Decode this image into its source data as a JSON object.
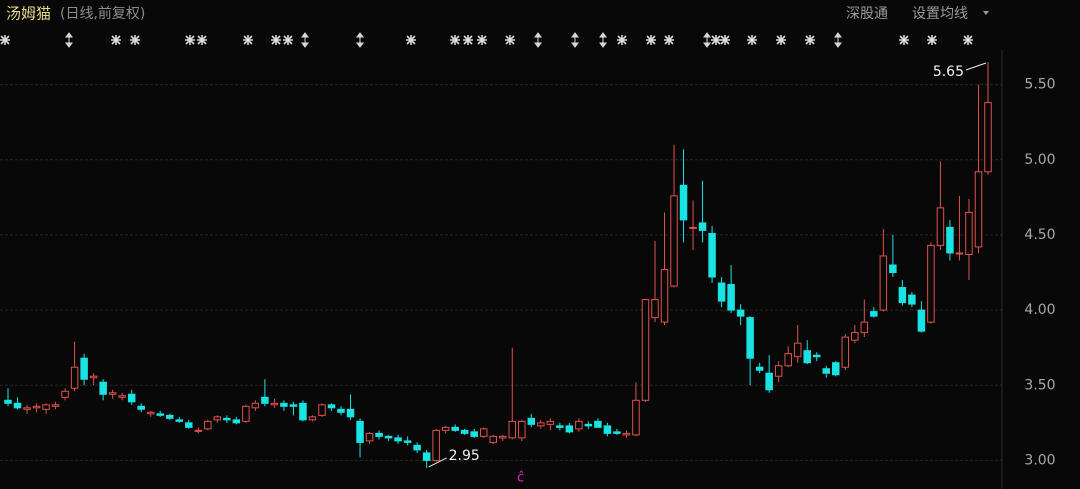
{
  "header": {
    "title": "汤姆猫",
    "subtitle": "(日线,前复权)",
    "buttons": [
      "深股通",
      "设置均线"
    ]
  },
  "chart_data": {
    "type": "candlestick",
    "up_color": "#e0524c",
    "down_color": "#19e3e3",
    "ylim": [
      2.81,
      5.73
    ],
    "yticks": [
      {
        "value": 3.0,
        "label": "3.00"
      },
      {
        "value": 3.5,
        "label": "3.50"
      },
      {
        "value": 4.0,
        "label": "4.00"
      },
      {
        "value": 4.5,
        "label": "4.50"
      },
      {
        "value": 5.0,
        "label": "5.00"
      },
      {
        "value": 5.5,
        "label": "5.50"
      }
    ],
    "grid": true,
    "open": [
      3.4,
      3.38,
      3.34,
      3.35,
      3.34,
      3.36,
      3.42,
      3.48,
      3.68,
      3.55,
      3.52,
      3.44,
      3.42,
      3.44,
      3.36,
      3.31,
      3.31,
      3.3,
      3.27,
      3.25,
      3.2,
      3.21,
      3.27,
      3.28,
      3.27,
      3.26,
      3.35,
      3.42,
      3.37,
      3.38,
      3.37,
      3.38,
      3.27,
      3.3,
      3.37,
      3.34,
      3.34,
      3.26,
      3.13,
      3.18,
      3.16,
      3.15,
      3.13,
      3.1,
      3.05,
      3.0,
      3.2,
      3.22,
      3.2,
      3.19,
      3.16,
      3.12,
      3.15,
      3.15,
      3.15,
      3.28,
      3.23,
      3.24,
      3.23,
      3.23,
      3.21,
      3.24,
      3.26,
      3.23,
      3.19,
      3.17,
      3.17,
      3.4,
      3.95,
      3.92,
      4.16,
      4.83,
      4.55,
      4.58,
      4.51,
      4.18,
      4.17,
      4.0,
      3.95,
      3.62,
      3.58,
      3.56,
      3.63,
      3.69,
      3.73,
      3.7,
      3.61,
      3.65,
      3.62,
      3.8,
      3.85,
      3.99,
      4.0,
      4.3,
      4.15,
      4.1,
      4.0,
      3.92,
      4.43,
      4.55,
      4.38,
      4.37,
      4.42,
      4.92
    ],
    "high": [
      3.48,
      3.42,
      3.37,
      3.38,
      3.38,
      3.39,
      3.48,
      3.79,
      3.71,
      3.58,
      3.54,
      3.47,
      3.45,
      3.47,
      3.38,
      3.33,
      3.33,
      3.31,
      3.29,
      3.27,
      3.22,
      3.27,
      3.3,
      3.3,
      3.29,
      3.37,
      3.4,
      3.54,
      3.41,
      3.4,
      3.39,
      3.4,
      3.3,
      3.38,
      3.38,
      3.36,
      3.44,
      3.28,
      3.19,
      3.2,
      3.17,
      3.17,
      3.16,
      3.12,
      3.07,
      3.21,
      3.23,
      3.24,
      3.21,
      3.21,
      3.22,
      3.17,
      3.17,
      3.75,
      3.27,
      3.31,
      3.27,
      3.28,
      3.25,
      3.25,
      3.28,
      3.26,
      3.28,
      3.25,
      3.21,
      3.2,
      3.52,
      4.07,
      4.46,
      4.65,
      5.1,
      5.07,
      4.73,
      4.86,
      4.56,
      4.22,
      4.3,
      4.04,
      3.96,
      3.65,
      3.7,
      3.66,
      3.76,
      3.9,
      3.8,
      3.72,
      3.63,
      3.66,
      3.84,
      3.9,
      4.07,
      4.02,
      4.54,
      4.5,
      4.2,
      4.12,
      4.06,
      4.45,
      4.99,
      4.6,
      4.76,
      4.74,
      5.5,
      5.65
    ],
    "low": [
      3.36,
      3.34,
      3.31,
      3.32,
      3.31,
      3.34,
      3.4,
      3.46,
      3.5,
      3.5,
      3.4,
      3.41,
      3.4,
      3.37,
      3.32,
      3.29,
      3.29,
      3.27,
      3.25,
      3.21,
      3.18,
      3.2,
      3.25,
      3.25,
      3.24,
      3.25,
      3.33,
      3.36,
      3.35,
      3.33,
      3.3,
      3.26,
      3.26,
      3.29,
      3.33,
      3.3,
      3.27,
      3.02,
      3.11,
      3.14,
      3.13,
      3.11,
      3.1,
      3.05,
      2.95,
      2.99,
      3.18,
      3.19,
      3.17,
      3.15,
      3.15,
      3.11,
      3.13,
      3.14,
      3.13,
      3.22,
      3.21,
      3.2,
      3.2,
      3.18,
      3.19,
      3.21,
      3.22,
      3.16,
      3.17,
      3.15,
      3.16,
      3.39,
      3.92,
      3.9,
      4.15,
      4.45,
      4.4,
      4.45,
      4.18,
      4.02,
      3.98,
      3.9,
      3.5,
      3.58,
      3.45,
      3.52,
      3.62,
      3.65,
      3.64,
      3.66,
      3.55,
      3.56,
      3.6,
      3.78,
      3.82,
      3.95,
      3.99,
      4.22,
      4.03,
      4.02,
      3.85,
      3.91,
      4.4,
      4.33,
      4.33,
      4.2,
      4.38,
      4.9
    ],
    "close": [
      3.38,
      3.35,
      3.35,
      3.36,
      3.37,
      3.37,
      3.46,
      3.62,
      3.54,
      3.56,
      3.44,
      3.45,
      3.43,
      3.39,
      3.34,
      3.32,
      3.3,
      3.28,
      3.26,
      3.22,
      3.2,
      3.26,
      3.29,
      3.27,
      3.25,
      3.36,
      3.38,
      3.38,
      3.38,
      3.36,
      3.36,
      3.27,
      3.29,
      3.37,
      3.35,
      3.32,
      3.29,
      3.12,
      3.18,
      3.16,
      3.15,
      3.13,
      3.12,
      3.07,
      3.0,
      3.2,
      3.22,
      3.2,
      3.18,
      3.16,
      3.21,
      3.16,
      3.16,
      3.26,
      3.26,
      3.24,
      3.25,
      3.26,
      3.22,
      3.19,
      3.26,
      3.23,
      3.22,
      3.18,
      3.18,
      3.18,
      3.4,
      4.07,
      4.07,
      4.27,
      4.76,
      4.6,
      4.55,
      4.53,
      4.22,
      4.06,
      4.0,
      3.96,
      3.68,
      3.6,
      3.47,
      3.63,
      3.71,
      3.78,
      3.65,
      3.69,
      3.58,
      3.57,
      3.82,
      3.85,
      3.92,
      3.96,
      4.36,
      4.25,
      4.05,
      4.04,
      3.86,
      4.43,
      4.68,
      4.38,
      4.38,
      4.65,
      4.92,
      5.38
    ],
    "annotations": [
      {
        "text": "5.65"
      },
      {
        "text": "2.95"
      }
    ]
  }
}
